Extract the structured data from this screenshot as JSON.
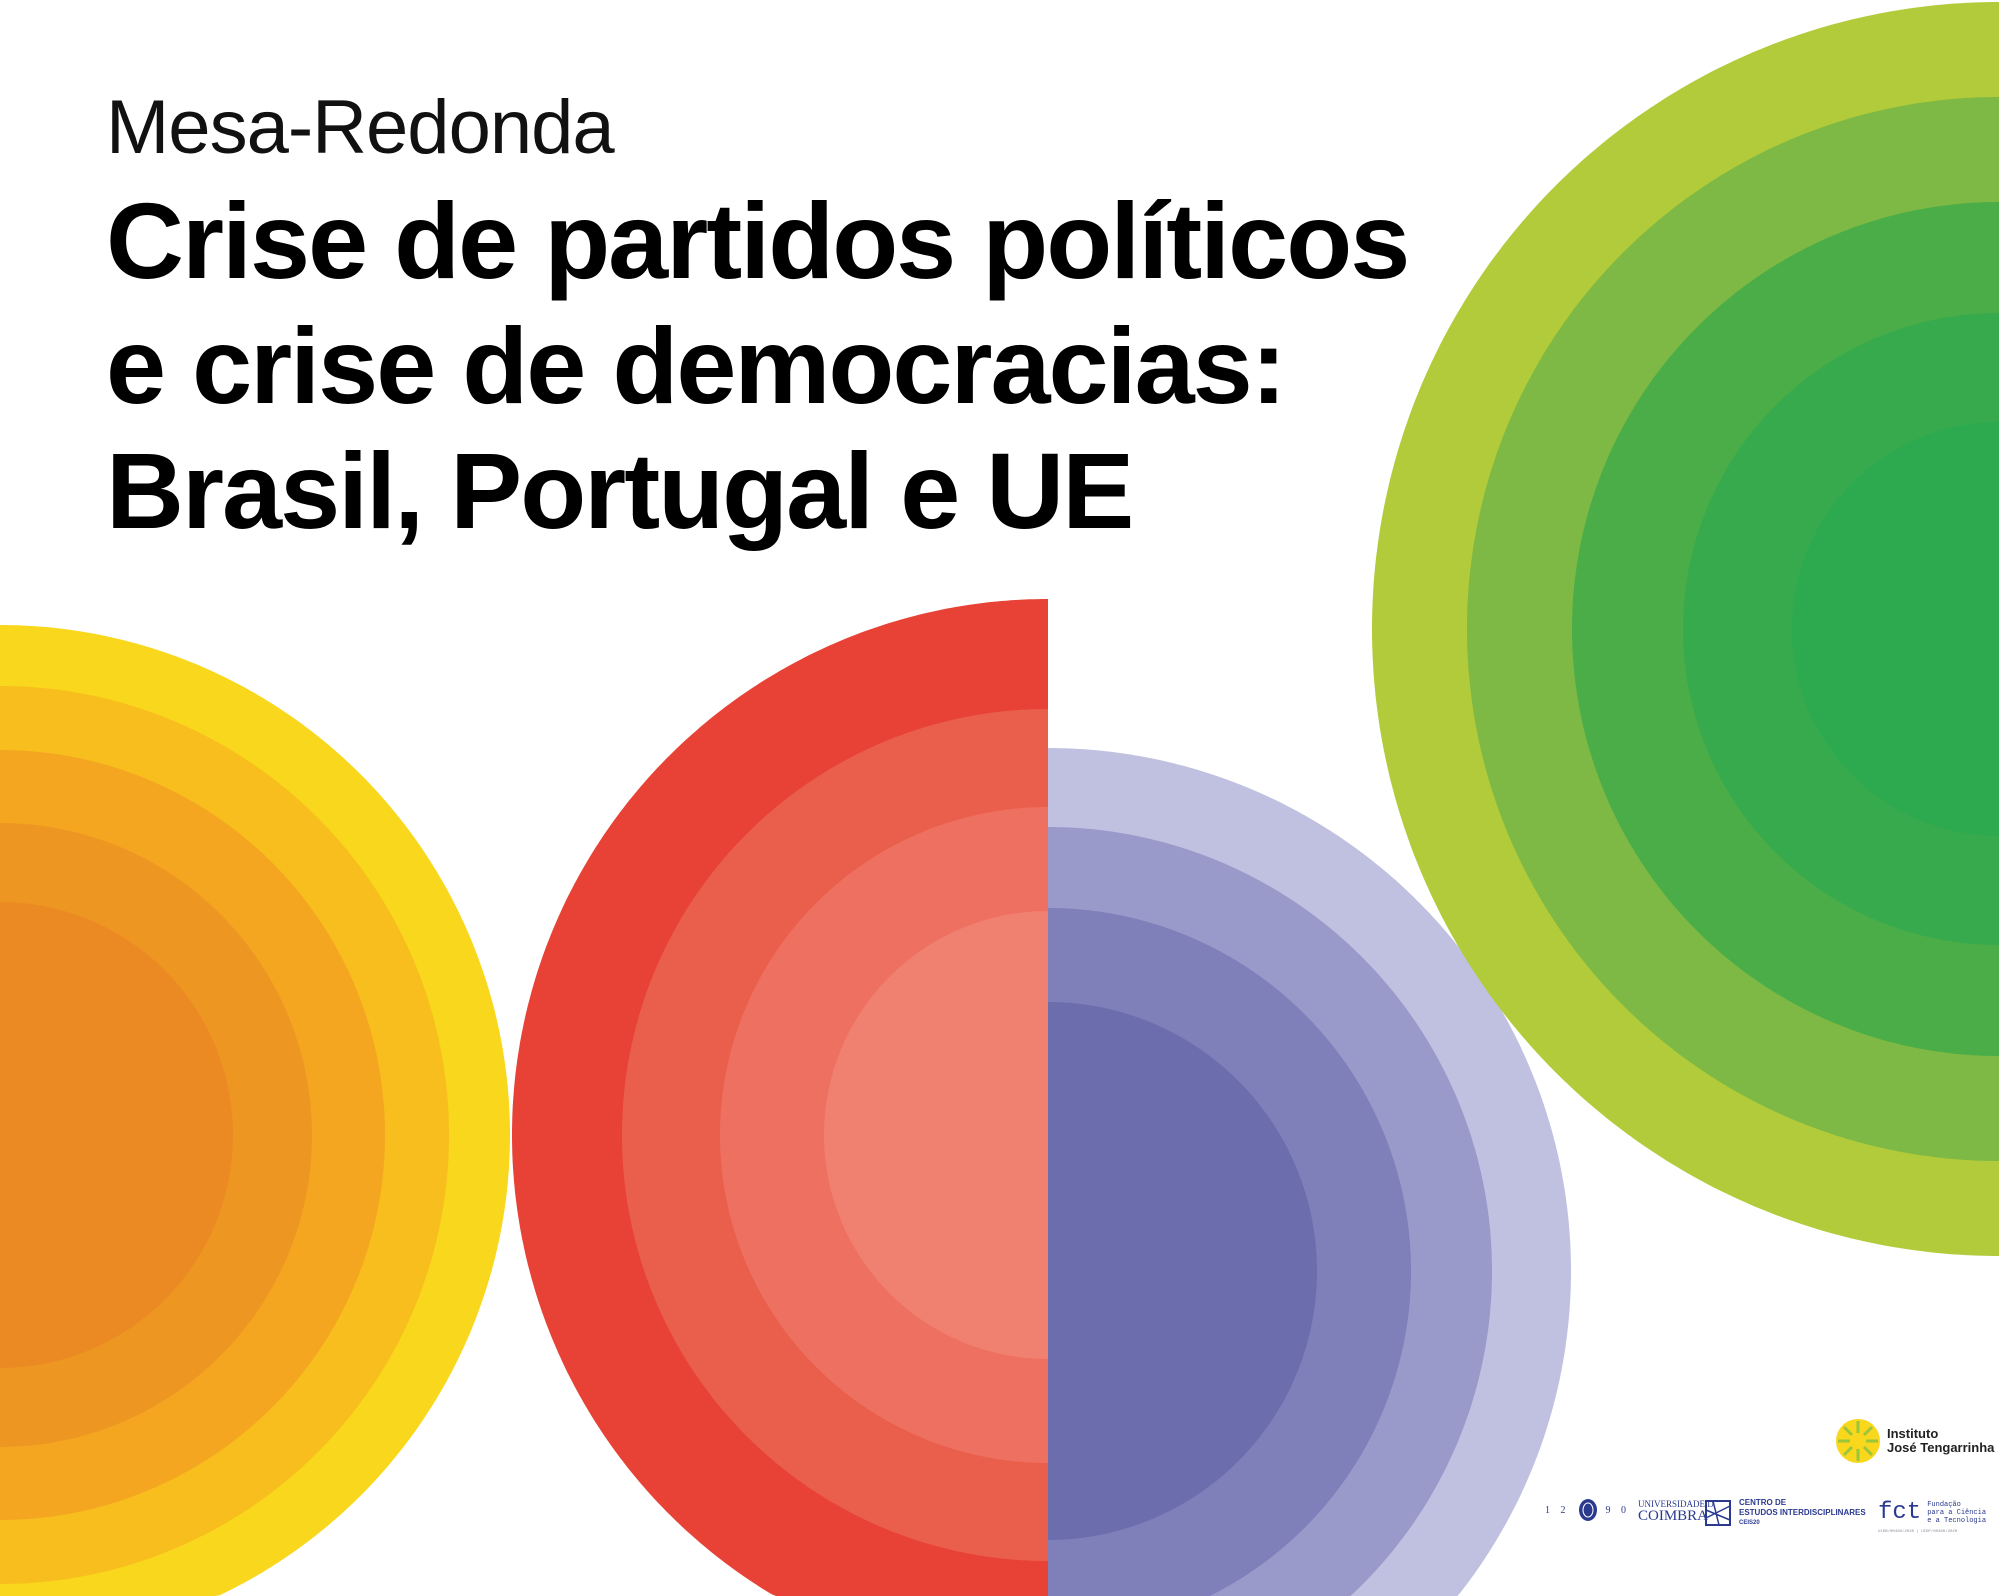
{
  "header": {
    "subtitle": "Mesa-Redonda",
    "title_lines": [
      "Crise de partidos políticos",
      "e crise de democracias:",
      "Brasil, Portugal e UE"
    ]
  },
  "colors": {
    "yellow": [
      "#F9D71C",
      "#F7BE1E",
      "#F4A620",
      "#EE9622",
      "#EB8A23"
    ],
    "red": [
      "#E84236",
      "#EA5F4C",
      "#EE7060",
      "#F08070"
    ],
    "purple": [
      "#C0C1E0",
      "#9999CA",
      "#7F7FB9",
      "#6B6DAD"
    ],
    "green": [
      "#B2CB3A",
      "#7DB944",
      "#4AAD48",
      "#36AA4C",
      "#2DAA4F"
    ]
  },
  "logos": {
    "ijt": {
      "line1": "Instituto",
      "line2": "José Tengarrinha"
    },
    "coimbra": {
      "year_left": "1 2",
      "year_right": "9 0",
      "line1": "UNIVERSIDADE D",
      "line2": "COIMBRA"
    },
    "ceis": {
      "line1": "CENTRO DE",
      "line2": "ESTUDOS INTERDISCIPLINARES",
      "line3": "CEIS20"
    },
    "fct": {
      "mark": "fct",
      "line1": "Fundação",
      "line2": "para a Ciência",
      "line3": "e a Tecnologia",
      "ref": "UIDB/00460/2020 | UIDP/00460/2020"
    }
  }
}
